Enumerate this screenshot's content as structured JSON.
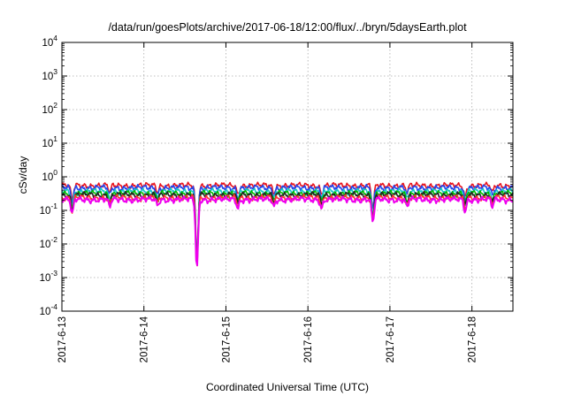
{
  "chart_data": {
    "type": "line",
    "title": "/data/run/goesPlots/archive/2017-06-18/12:00/flux/../bryn/5daysEarth.plot",
    "xlabel": "Coordinated Universal Time (UTC)",
    "ylabel": "cSv/day",
    "y_scale": "log",
    "ylim": [
      0.0001,
      10000
    ],
    "xlim": [
      "2017-06-13T00:00",
      "2017-06-18T12:00"
    ],
    "grid": true,
    "x_ticks": [
      "2017-6-13",
      "2017-6-14",
      "2017-6-15",
      "2017-6-16",
      "2017-6-17",
      "2017-6-18"
    ],
    "y_ticks": [
      {
        "value": 0.0001,
        "base": "10",
        "exp": "-4"
      },
      {
        "value": 0.001,
        "base": "10",
        "exp": "-3"
      },
      {
        "value": 0.01,
        "base": "10",
        "exp": "-2"
      },
      {
        "value": 0.1,
        "base": "10",
        "exp": "-1"
      },
      {
        "value": 1,
        "base": "10",
        "exp": "0"
      },
      {
        "value": 10,
        "base": "10",
        "exp": "1"
      },
      {
        "value": 100,
        "base": "10",
        "exp": "2"
      },
      {
        "value": 1000,
        "base": "10",
        "exp": "3"
      },
      {
        "value": 10000,
        "base": "10",
        "exp": "4"
      }
    ],
    "series": [
      {
        "color": "#e8141e",
        "base": 0.55
      },
      {
        "color": "#2244ee",
        "base": 0.47
      },
      {
        "color": "#18c8c8",
        "base": 0.37
      },
      {
        "color": "#00bb00",
        "base": 0.32
      },
      {
        "color": "#222222",
        "base": 0.29
      },
      {
        "color": "#ff3333",
        "base": 0.24
      },
      {
        "color": "#ee00ee",
        "base": 0.21
      }
    ],
    "dips": [
      {
        "x": "2017-06-13T03:00",
        "factor": 0.35
      },
      {
        "x": "2017-06-13T14:00",
        "factor": 0.6
      },
      {
        "x": "2017-06-14T04:00",
        "factor": 0.65
      },
      {
        "x": "2017-06-14T15:30",
        "factor": 0.008
      },
      {
        "x": "2017-06-15T03:30",
        "factor": 0.55
      },
      {
        "x": "2017-06-15T14:00",
        "factor": 0.6
      },
      {
        "x": "2017-06-16T04:00",
        "factor": 0.55
      },
      {
        "x": "2017-06-16T19:00",
        "factor": 0.2
      },
      {
        "x": "2017-06-17T05:00",
        "factor": 0.6
      },
      {
        "x": "2017-06-17T22:00",
        "factor": 0.45
      },
      {
        "x": "2017-06-18T06:00",
        "factor": 0.6
      }
    ]
  }
}
